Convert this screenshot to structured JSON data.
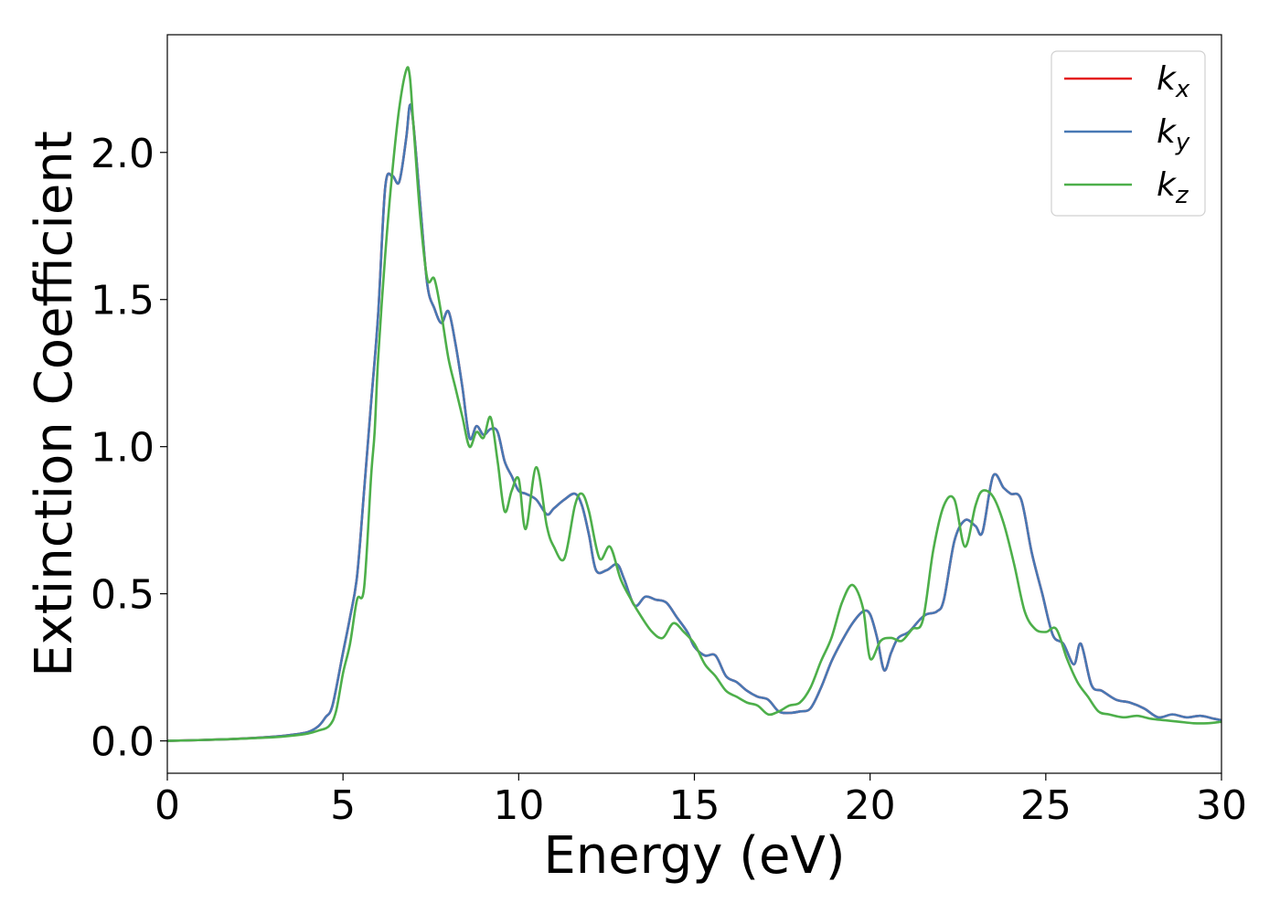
{
  "chart_data": {
    "type": "line",
    "xlabel": "Energy (eV)",
    "ylabel": "Extinction Coefficient",
    "xlim": [
      0,
      30
    ],
    "ylim": [
      -0.11,
      2.4
    ],
    "xticks": [
      0,
      5,
      10,
      15,
      20,
      25,
      30
    ],
    "xtick_labels": [
      "0",
      "5",
      "10",
      "15",
      "20",
      "25",
      "30"
    ],
    "yticks": [
      0.0,
      0.5,
      1.0,
      1.5,
      2.0
    ],
    "ytick_labels": [
      "0.0",
      "0.5",
      "1.0",
      "1.5",
      "2.0"
    ],
    "grid": false,
    "legend_position": "top-right",
    "series": [
      {
        "name": "k_x",
        "label_base": "k",
        "label_sub": "x",
        "color": "#e41a1c",
        "x": [
          0,
          1,
          2,
          3,
          3.5,
          4,
          4.3,
          4.5,
          4.7,
          5.0,
          5.2,
          5.4,
          5.6,
          5.8,
          6.0,
          6.2,
          6.4,
          6.6,
          6.8,
          6.9,
          7.0,
          7.2,
          7.4,
          7.6,
          7.8,
          8.0,
          8.2,
          8.4,
          8.6,
          8.8,
          9.0,
          9.2,
          9.4,
          9.6,
          9.8,
          10.0,
          10.2,
          10.5,
          10.8,
          11.0,
          11.3,
          11.6,
          11.8,
          12.0,
          12.2,
          12.5,
          12.8,
          13.0,
          13.3,
          13.6,
          13.9,
          14.2,
          14.5,
          14.8,
          15.0,
          15.3,
          15.6,
          15.9,
          16.2,
          16.5,
          16.8,
          17.1,
          17.4,
          17.7,
          18.0,
          18.3,
          18.6,
          18.9,
          19.2,
          19.5,
          19.8,
          20.0,
          20.2,
          20.4,
          20.6,
          20.8,
          21.1,
          21.4,
          21.6,
          21.9,
          22.1,
          22.4,
          22.7,
          23.0,
          23.2,
          23.5,
          23.8,
          24.0,
          24.3,
          24.6,
          24.9,
          25.2,
          25.5,
          25.8,
          26.0,
          26.3,
          26.6,
          27.0,
          27.4,
          27.8,
          28.2,
          28.6,
          29.0,
          29.4,
          29.8,
          30.0
        ],
        "y": [
          0.0,
          0.003,
          0.007,
          0.014,
          0.02,
          0.03,
          0.05,
          0.08,
          0.12,
          0.3,
          0.42,
          0.56,
          0.85,
          1.15,
          1.45,
          1.88,
          1.92,
          1.9,
          2.05,
          2.16,
          2.1,
          1.82,
          1.55,
          1.47,
          1.42,
          1.46,
          1.35,
          1.2,
          1.03,
          1.07,
          1.04,
          1.06,
          1.05,
          0.95,
          0.9,
          0.85,
          0.84,
          0.82,
          0.77,
          0.79,
          0.82,
          0.84,
          0.8,
          0.7,
          0.58,
          0.58,
          0.6,
          0.55,
          0.46,
          0.49,
          0.48,
          0.47,
          0.42,
          0.37,
          0.32,
          0.29,
          0.29,
          0.22,
          0.2,
          0.17,
          0.15,
          0.14,
          0.1,
          0.095,
          0.1,
          0.11,
          0.18,
          0.27,
          0.34,
          0.4,
          0.44,
          0.43,
          0.35,
          0.24,
          0.3,
          0.35,
          0.37,
          0.41,
          0.43,
          0.44,
          0.48,
          0.68,
          0.75,
          0.73,
          0.71,
          0.9,
          0.86,
          0.84,
          0.82,
          0.64,
          0.5,
          0.36,
          0.33,
          0.26,
          0.33,
          0.19,
          0.17,
          0.14,
          0.13,
          0.11,
          0.08,
          0.09,
          0.08,
          0.085,
          0.075,
          0.07
        ]
      },
      {
        "name": "k_y",
        "label_base": "k",
        "label_sub": "y",
        "color": "#4878b4",
        "x": [
          0,
          1,
          2,
          3,
          3.5,
          4,
          4.3,
          4.5,
          4.7,
          5.0,
          5.2,
          5.4,
          5.6,
          5.8,
          6.0,
          6.2,
          6.4,
          6.6,
          6.8,
          6.9,
          7.0,
          7.2,
          7.4,
          7.6,
          7.8,
          8.0,
          8.2,
          8.4,
          8.6,
          8.8,
          9.0,
          9.2,
          9.4,
          9.6,
          9.8,
          10.0,
          10.2,
          10.5,
          10.8,
          11.0,
          11.3,
          11.6,
          11.8,
          12.0,
          12.2,
          12.5,
          12.8,
          13.0,
          13.3,
          13.6,
          13.9,
          14.2,
          14.5,
          14.8,
          15.0,
          15.3,
          15.6,
          15.9,
          16.2,
          16.5,
          16.8,
          17.1,
          17.4,
          17.7,
          18.0,
          18.3,
          18.6,
          18.9,
          19.2,
          19.5,
          19.8,
          20.0,
          20.2,
          20.4,
          20.6,
          20.8,
          21.1,
          21.4,
          21.6,
          21.9,
          22.1,
          22.4,
          22.7,
          23.0,
          23.2,
          23.5,
          23.8,
          24.0,
          24.3,
          24.6,
          24.9,
          25.2,
          25.5,
          25.8,
          26.0,
          26.3,
          26.6,
          27.0,
          27.4,
          27.8,
          28.2,
          28.6,
          29.0,
          29.4,
          29.8,
          30.0
        ],
        "y": [
          0.0,
          0.003,
          0.007,
          0.014,
          0.02,
          0.03,
          0.05,
          0.08,
          0.12,
          0.3,
          0.42,
          0.56,
          0.85,
          1.15,
          1.45,
          1.88,
          1.92,
          1.9,
          2.05,
          2.16,
          2.1,
          1.82,
          1.55,
          1.47,
          1.42,
          1.46,
          1.35,
          1.2,
          1.03,
          1.07,
          1.04,
          1.06,
          1.05,
          0.95,
          0.9,
          0.85,
          0.84,
          0.82,
          0.77,
          0.79,
          0.82,
          0.84,
          0.8,
          0.7,
          0.58,
          0.58,
          0.6,
          0.55,
          0.46,
          0.49,
          0.48,
          0.47,
          0.42,
          0.37,
          0.32,
          0.29,
          0.29,
          0.22,
          0.2,
          0.17,
          0.15,
          0.14,
          0.1,
          0.095,
          0.1,
          0.11,
          0.18,
          0.27,
          0.34,
          0.4,
          0.44,
          0.43,
          0.35,
          0.24,
          0.3,
          0.35,
          0.37,
          0.41,
          0.43,
          0.44,
          0.48,
          0.68,
          0.75,
          0.73,
          0.71,
          0.9,
          0.86,
          0.84,
          0.82,
          0.64,
          0.5,
          0.36,
          0.33,
          0.26,
          0.33,
          0.19,
          0.17,
          0.14,
          0.13,
          0.11,
          0.08,
          0.09,
          0.08,
          0.085,
          0.075,
          0.07
        ]
      },
      {
        "name": "k_z",
        "label_base": "k",
        "label_sub": "z",
        "color": "#4daf4a",
        "x": [
          0,
          1,
          2,
          3,
          3.5,
          4,
          4.3,
          4.6,
          4.8,
          5.0,
          5.2,
          5.4,
          5.6,
          5.8,
          5.9,
          6.0,
          6.2,
          6.4,
          6.6,
          6.8,
          6.9,
          7.0,
          7.2,
          7.4,
          7.6,
          7.8,
          8.0,
          8.2,
          8.4,
          8.6,
          8.8,
          9.0,
          9.2,
          9.4,
          9.6,
          9.8,
          10.0,
          10.2,
          10.5,
          10.8,
          11.0,
          11.3,
          11.6,
          11.8,
          12.0,
          12.3,
          12.6,
          12.9,
          13.2,
          13.5,
          13.8,
          14.1,
          14.4,
          14.7,
          15.0,
          15.3,
          15.6,
          15.9,
          16.2,
          16.5,
          16.8,
          17.1,
          17.4,
          17.7,
          18.0,
          18.3,
          18.6,
          18.9,
          19.2,
          19.5,
          19.8,
          20.0,
          20.3,
          20.6,
          20.9,
          21.2,
          21.5,
          21.8,
          22.1,
          22.4,
          22.7,
          23.0,
          23.2,
          23.5,
          23.8,
          24.1,
          24.4,
          24.7,
          25.0,
          25.3,
          25.6,
          25.9,
          26.2,
          26.5,
          26.8,
          27.2,
          27.6,
          28.0,
          28.4,
          28.8,
          29.2,
          29.6,
          30.0
        ],
        "y": [
          0.0,
          0.003,
          0.007,
          0.012,
          0.017,
          0.025,
          0.035,
          0.05,
          0.1,
          0.23,
          0.33,
          0.48,
          0.52,
          0.9,
          1.05,
          1.3,
          1.65,
          1.93,
          2.15,
          2.28,
          2.26,
          2.1,
          1.78,
          1.57,
          1.57,
          1.45,
          1.3,
          1.2,
          1.1,
          1.0,
          1.05,
          1.03,
          1.1,
          0.95,
          0.78,
          0.85,
          0.89,
          0.72,
          0.93,
          0.73,
          0.66,
          0.62,
          0.8,
          0.84,
          0.78,
          0.62,
          0.66,
          0.55,
          0.48,
          0.42,
          0.37,
          0.35,
          0.4,
          0.37,
          0.33,
          0.26,
          0.22,
          0.17,
          0.15,
          0.13,
          0.12,
          0.09,
          0.1,
          0.12,
          0.13,
          0.18,
          0.27,
          0.35,
          0.47,
          0.53,
          0.45,
          0.28,
          0.34,
          0.35,
          0.34,
          0.38,
          0.41,
          0.65,
          0.8,
          0.82,
          0.66,
          0.8,
          0.85,
          0.83,
          0.74,
          0.6,
          0.44,
          0.38,
          0.37,
          0.38,
          0.28,
          0.2,
          0.15,
          0.1,
          0.09,
          0.08,
          0.085,
          0.075,
          0.07,
          0.065,
          0.06,
          0.06,
          0.065
        ]
      }
    ]
  }
}
